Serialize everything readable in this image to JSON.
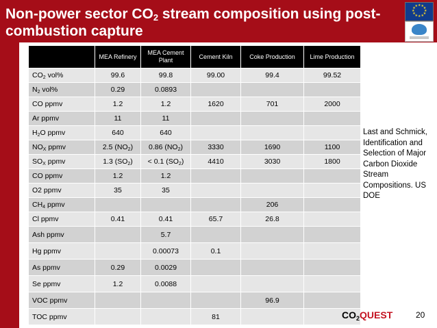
{
  "slide": {
    "title_prefix": "Non-power sector CO",
    "title_sub": "2",
    "title_suffix": " stream composition using post-combustion capture",
    "page_number": "20"
  },
  "logos": {
    "eu_flag": "eu-flag-icon",
    "fp7": "fp7-logo-icon"
  },
  "table": {
    "columns": [
      "",
      "MEA Refinery",
      "MEA Cement Plant",
      "Cement Kiln",
      "Coke Production",
      "Lime Production"
    ],
    "rows": [
      {
        "label": {
          "main": "CO",
          "sub": "2",
          "rest": " vol%"
        },
        "cells": [
          "99.6",
          "99.8",
          "99.00",
          "99.4",
          "99.52"
        ]
      },
      {
        "label": {
          "main": "N",
          "sub": "2",
          "rest": " vol%"
        },
        "cells": [
          "0.29",
          "0.0893",
          "",
          "",
          ""
        ]
      },
      {
        "label": {
          "main": "CO ppmv",
          "sub": "",
          "rest": ""
        },
        "cells": [
          "1.2",
          "1.2",
          "1620",
          "701",
          "2000"
        ]
      },
      {
        "label": {
          "main": "Ar ppmv",
          "sub": "",
          "rest": ""
        },
        "cells": [
          "11",
          "11",
          "",
          "",
          ""
        ]
      },
      {
        "label": {
          "main": "H",
          "sub": "2",
          "rest": "O ppmv"
        },
        "cells": [
          "640",
          "640",
          "",
          "",
          ""
        ]
      },
      {
        "label": {
          "main": "NO",
          "sub": "X",
          "rest": " ppmv"
        },
        "cells": [
          "2.5 (NO2)",
          "0.86 (NO2)",
          "3330",
          "1690",
          "1100"
        ]
      },
      {
        "label": {
          "main": "SO",
          "sub": "X",
          "rest": " ppmv"
        },
        "cells": [
          "1.3 (SO2)",
          "< 0.1 (SO2)",
          "4410",
          "3030",
          "1800"
        ]
      },
      {
        "label": {
          "main": "CO ppmv",
          "sub": "",
          "rest": ""
        },
        "cells": [
          "1.2",
          "1.2",
          "",
          "",
          ""
        ]
      },
      {
        "label": {
          "main": "O2 ppmv",
          "sub": "",
          "rest": ""
        },
        "cells": [
          "35",
          "35",
          "",
          "",
          ""
        ]
      },
      {
        "label": {
          "main": "CH",
          "sub": "4",
          "rest": " ppmv"
        },
        "cells": [
          "",
          "",
          "",
          "206",
          ""
        ]
      },
      {
        "label": {
          "main": "Cl ppmv",
          "sub": "",
          "rest": ""
        },
        "cells": [
          "0.41",
          "0.41",
          "65.7",
          "26.8",
          ""
        ]
      },
      {
        "label": {
          "main": "Ash ppmv",
          "sub": "",
          "rest": ""
        },
        "cells": [
          "",
          "5.7",
          "",
          "",
          ""
        ]
      },
      {
        "label": {
          "main": "Hg ppmv",
          "sub": "",
          "rest": ""
        },
        "cells": [
          "",
          "0.00073",
          "0.1",
          "",
          ""
        ]
      },
      {
        "label": {
          "main": "As ppmv",
          "sub": "",
          "rest": ""
        },
        "cells": [
          "0.29",
          "0.0029",
          "",
          "",
          ""
        ]
      },
      {
        "label": {
          "main": "Se ppmv",
          "sub": "",
          "rest": ""
        },
        "cells": [
          "1.2",
          "0.0088",
          "",
          "",
          ""
        ]
      },
      {
        "label": {
          "main": "VOC ppmv",
          "sub": "",
          "rest": ""
        },
        "cells": [
          "",
          "",
          "",
          "96.9",
          ""
        ]
      },
      {
        "label": {
          "main": "TOC ppmv",
          "sub": "",
          "rest": ""
        },
        "cells": [
          "",
          "",
          "81",
          "",
          ""
        ]
      }
    ]
  },
  "caption": {
    "text": "Last and Schmick, Identification and Selection of Major Carbon Dioxide Stream Compositions. US DOE"
  },
  "brand": {
    "prefix": "CO",
    "sub": "2",
    "suffix": "QUEST"
  },
  "colors": {
    "title_background": "#a50d18",
    "header_background": "#000000",
    "row_light": "#e6e6e6",
    "row_dark": "#d2d2d2",
    "brand_accent": "#c41220"
  }
}
